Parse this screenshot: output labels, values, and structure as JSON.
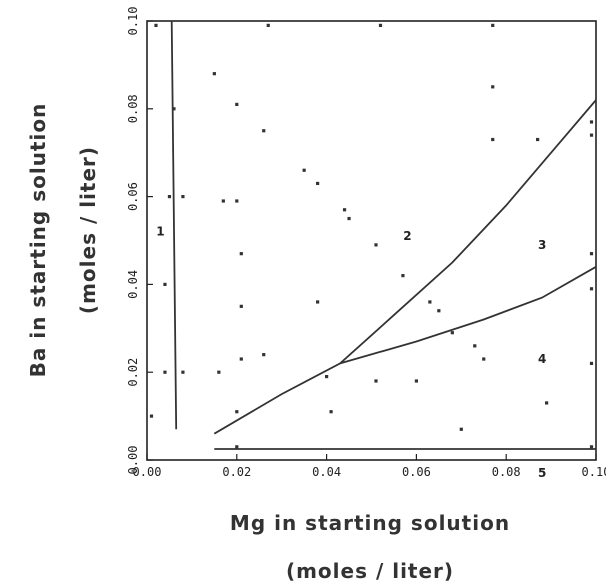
{
  "chart_data": {
    "type": "scatter",
    "xlabel": "Mg in starting solution",
    "xunit": "(moles / liter)",
    "ylabel": "Ba in starting solution",
    "yunit": "(moles / liter)",
    "xlim": [
      0.0,
      0.1
    ],
    "ylim": [
      0.0,
      0.1
    ],
    "grid": false,
    "x_ticks": [
      {
        "value": 0.0,
        "label": "0.00"
      },
      {
        "value": 0.02,
        "label": "0.02"
      },
      {
        "value": 0.04,
        "label": "0.04"
      },
      {
        "value": 0.06,
        "label": "0.06"
      },
      {
        "value": 0.08,
        "label": "0.08"
      },
      {
        "value": 0.1,
        "label": "0.10"
      }
    ],
    "y_ticks": [
      {
        "value": 0.0,
        "label": "0.00"
      },
      {
        "value": 0.02,
        "label": "0.02"
      },
      {
        "value": 0.04,
        "label": "0.04"
      },
      {
        "value": 0.06,
        "label": "0.06"
      },
      {
        "value": 0.08,
        "label": "0.08"
      },
      {
        "value": 0.1,
        "label": "0.10"
      }
    ],
    "points": [
      [
        0.001,
        0.01
      ],
      [
        0.002,
        0.099
      ],
      [
        0.004,
        0.02
      ],
      [
        0.004,
        0.04
      ],
      [
        0.005,
        0.06
      ],
      [
        0.006,
        0.08
      ],
      [
        0.008,
        0.02
      ],
      [
        0.008,
        0.06
      ],
      [
        0.015,
        0.088
      ],
      [
        0.016,
        0.02
      ],
      [
        0.017,
        0.059
      ],
      [
        0.02,
        0.081
      ],
      [
        0.02,
        0.059
      ],
      [
        0.021,
        0.047
      ],
      [
        0.021,
        0.035
      ],
      [
        0.021,
        0.023
      ],
      [
        0.02,
        0.011
      ],
      [
        0.02,
        0.003
      ],
      [
        0.026,
        0.075
      ],
      [
        0.026,
        0.024
      ],
      [
        0.035,
        0.066
      ],
      [
        0.038,
        0.063
      ],
      [
        0.038,
        0.036
      ],
      [
        0.04,
        0.019
      ],
      [
        0.041,
        0.011
      ],
      [
        0.044,
        0.057
      ],
      [
        0.045,
        0.055
      ],
      [
        0.051,
        0.049
      ],
      [
        0.051,
        0.018
      ],
      [
        0.057,
        0.042
      ],
      [
        0.06,
        0.018
      ],
      [
        0.063,
        0.036
      ],
      [
        0.065,
        0.034
      ],
      [
        0.068,
        0.029
      ],
      [
        0.07,
        0.007
      ],
      [
        0.073,
        0.026
      ],
      [
        0.075,
        0.023
      ],
      [
        0.077,
        0.085
      ],
      [
        0.077,
        0.073
      ],
      [
        0.087,
        0.073
      ],
      [
        0.089,
        0.013
      ],
      [
        0.099,
        0.077
      ],
      [
        0.099,
        0.074
      ],
      [
        0.099,
        0.047
      ],
      [
        0.099,
        0.039
      ],
      [
        0.099,
        0.022
      ],
      [
        0.099,
        0.003
      ],
      [
        0.027,
        0.099
      ],
      [
        0.052,
        0.099
      ],
      [
        0.077,
        0.099
      ]
    ],
    "boundaries": [
      {
        "name": "1|2",
        "points": [
          [
            0.0055,
            0.1
          ],
          [
            0.0065,
            0.007
          ]
        ]
      },
      {
        "name": "2|3,4",
        "points": [
          [
            0.015,
            0.006
          ],
          [
            0.03,
            0.015
          ],
          [
            0.043,
            0.022
          ],
          [
            0.055,
            0.033
          ],
          [
            0.068,
            0.045
          ],
          [
            0.08,
            0.058
          ],
          [
            0.09,
            0.07
          ],
          [
            0.1,
            0.082
          ]
        ]
      },
      {
        "name": "3|4",
        "points": [
          [
            0.043,
            0.022
          ],
          [
            0.06,
            0.027
          ],
          [
            0.075,
            0.032
          ],
          [
            0.088,
            0.037
          ],
          [
            0.1,
            0.044
          ]
        ]
      },
      {
        "name": "5",
        "points": [
          [
            0.015,
            0.0025
          ],
          [
            0.1,
            0.0025
          ]
        ]
      }
    ],
    "regions": [
      {
        "label": "1",
        "x": 0.003,
        "y": 0.052
      },
      {
        "label": "2",
        "x": 0.058,
        "y": 0.051
      },
      {
        "label": "3",
        "x": 0.088,
        "y": 0.049
      },
      {
        "label": "4",
        "x": 0.088,
        "y": 0.023
      },
      {
        "label": "5",
        "x": 0.088,
        "y": -0.003
      }
    ]
  }
}
